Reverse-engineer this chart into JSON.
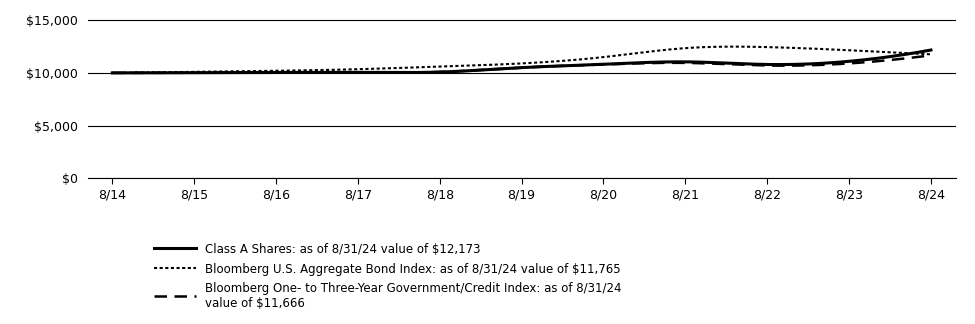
{
  "x_labels": [
    "8/14",
    "8/15",
    "8/16",
    "8/17",
    "8/18",
    "8/19",
    "8/20",
    "8/21",
    "8/22",
    "8/23",
    "8/24"
  ],
  "x_positions": [
    0,
    1,
    2,
    3,
    4,
    5,
    6,
    7,
    8,
    9,
    10
  ],
  "class_a": [
    10000,
    10010,
    10030,
    10050,
    10080,
    10500,
    10820,
    11050,
    10800,
    11100,
    12173
  ],
  "bloomberg_agg": [
    10000,
    10100,
    10200,
    10350,
    10600,
    10900,
    11500,
    12350,
    12450,
    12150,
    11765
  ],
  "bloomberg_gov": [
    10000,
    10010,
    10030,
    10060,
    10090,
    10500,
    10800,
    10950,
    10700,
    10900,
    11666
  ],
  "yticks": [
    0,
    5000,
    10000,
    15000
  ],
  "ylim": [
    0,
    16000
  ],
  "xlim": [
    -0.3,
    10.3
  ],
  "line_color": "#000000",
  "bg_color": "#ffffff",
  "legend_labels": [
    "Class A Shares: as of 8/31/24 value of $12,173",
    "Bloomberg U.S. Aggregate Bond Index: as of 8/31/24 value of $11,765",
    "Bloomberg One- to Three-Year Government/Credit Index: as of 8/31/24\nvalue of $11,666"
  ],
  "figsize": [
    9.75,
    3.24
  ],
  "dpi": 100
}
